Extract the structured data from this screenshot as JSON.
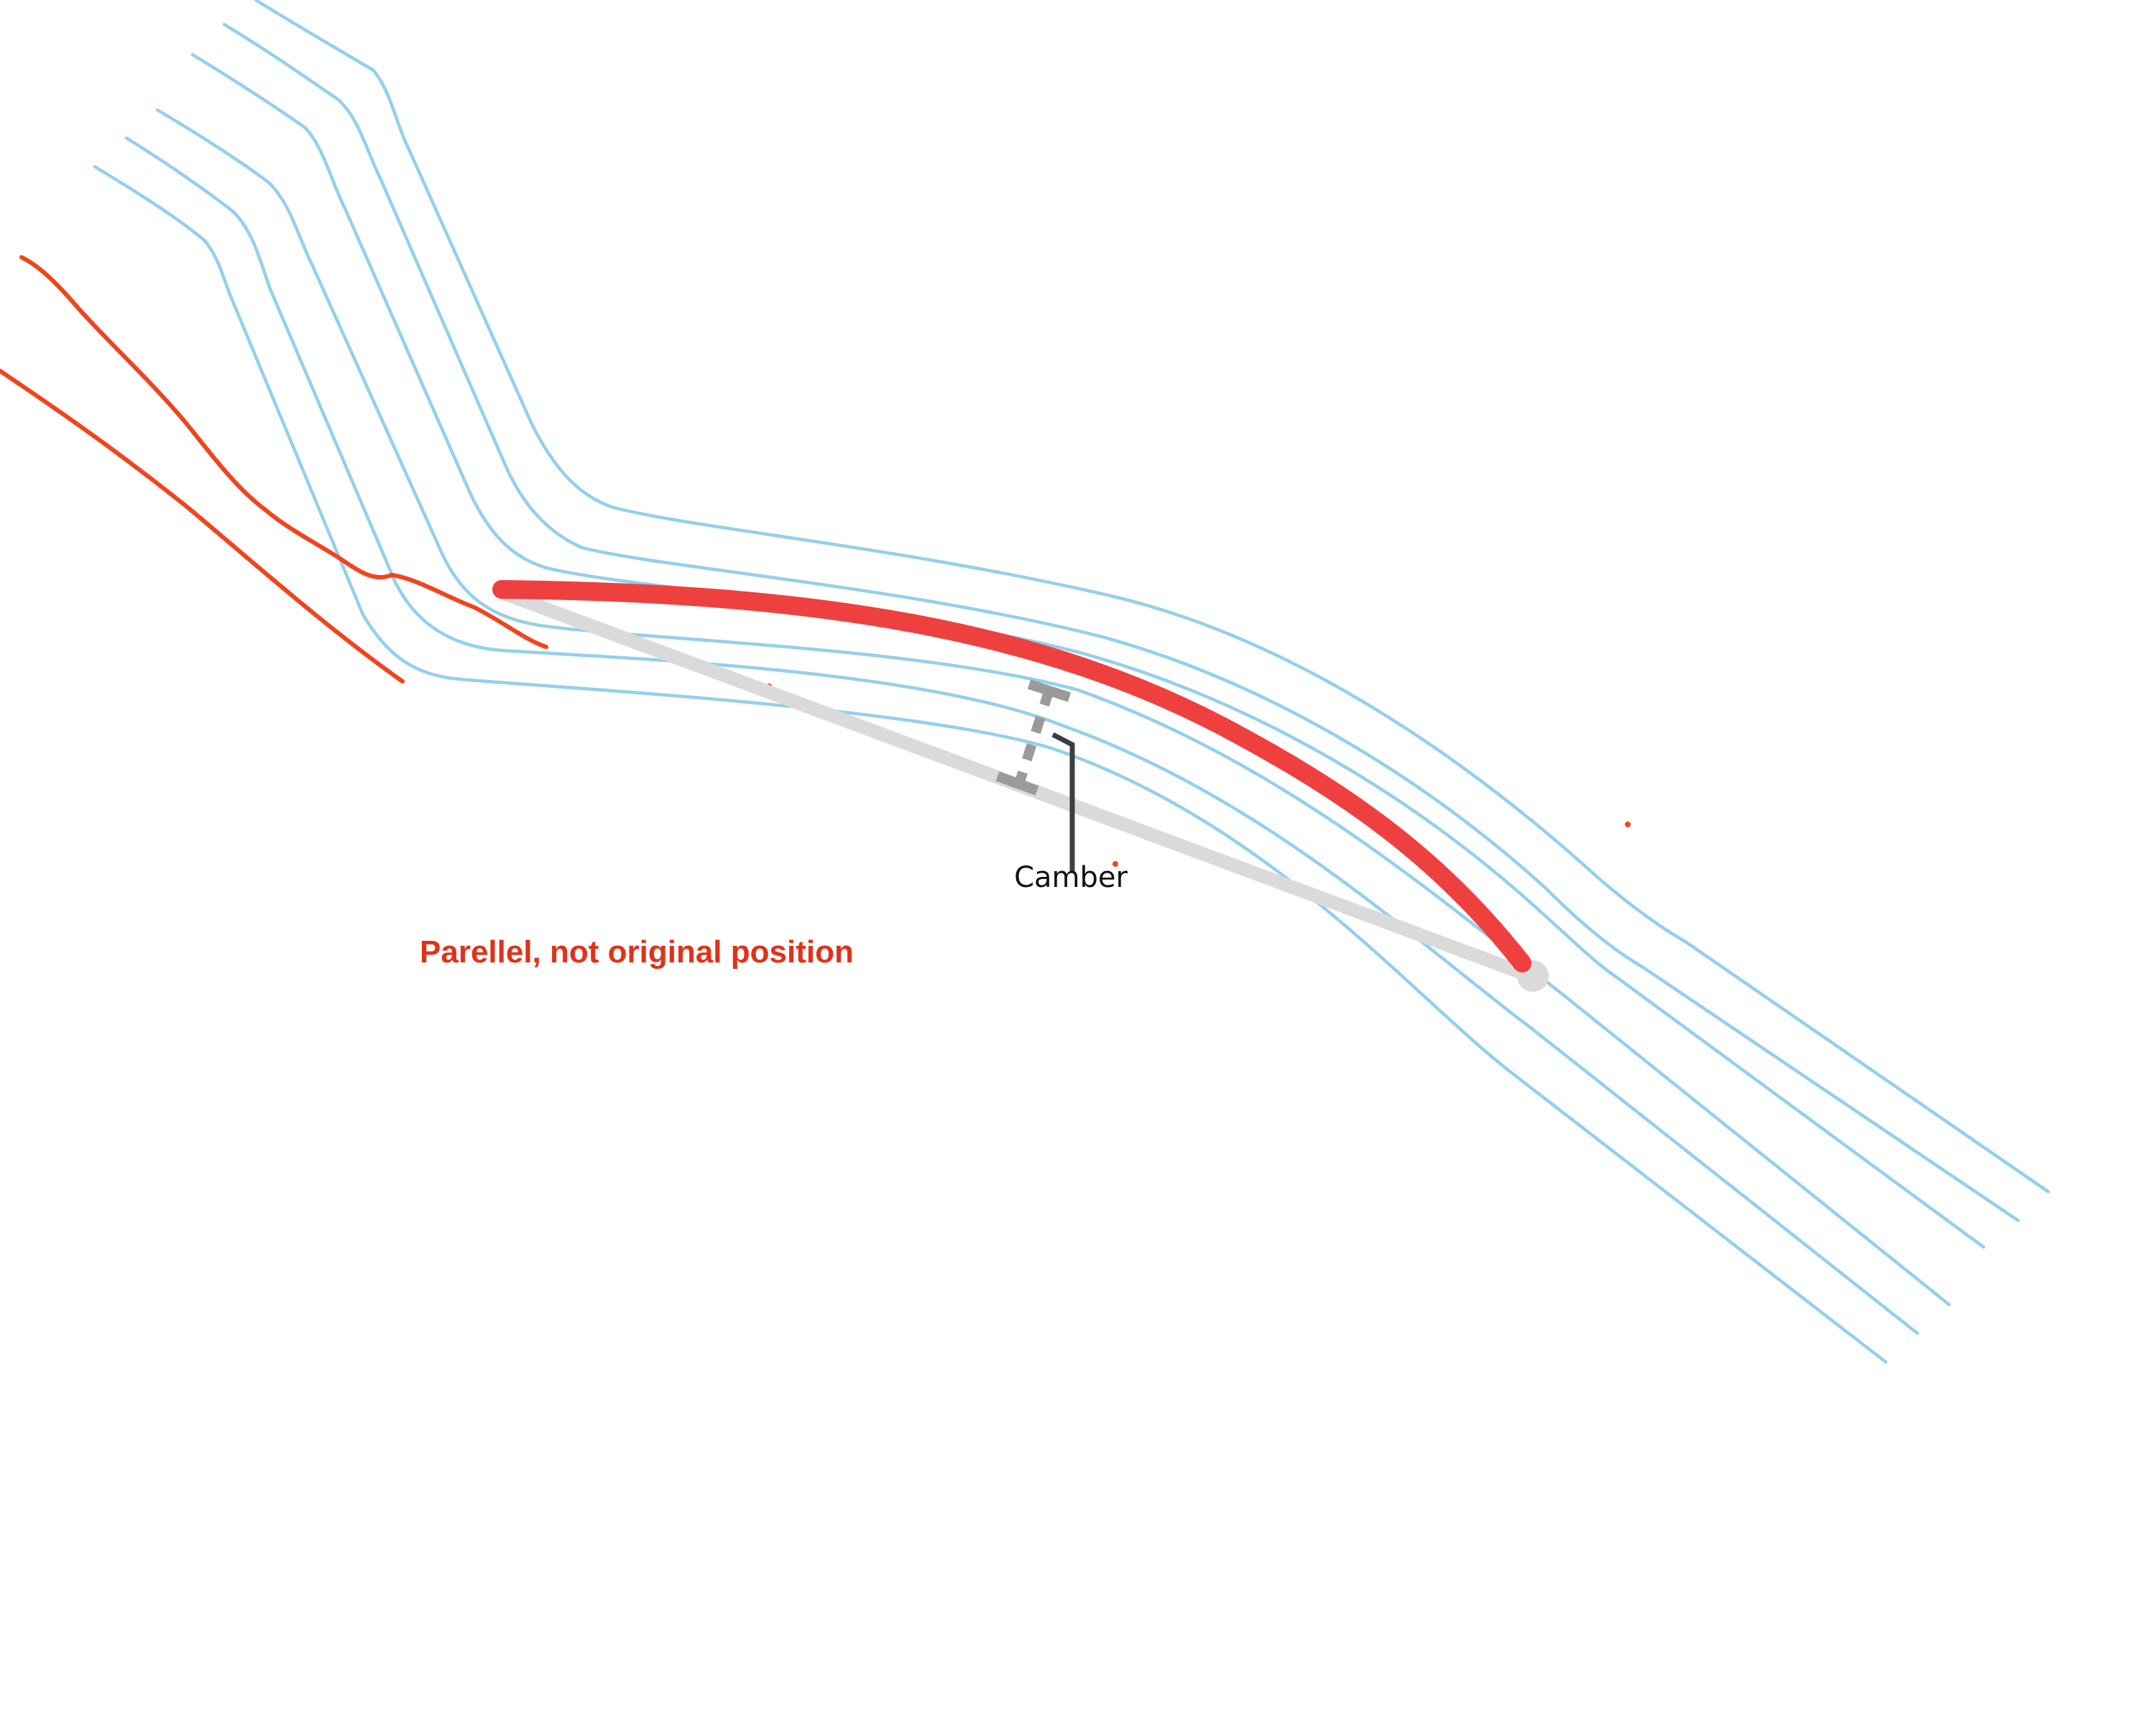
{
  "diagram": {
    "camber_label": "Camber",
    "annotation_note": "Parellel, not original position"
  },
  "colors": {
    "streamline": "#93d0ea",
    "camber_line": "#ef4040",
    "chord_line": "#dadada",
    "sketch": "#f2441c",
    "annotation_text": "#e0321a"
  }
}
